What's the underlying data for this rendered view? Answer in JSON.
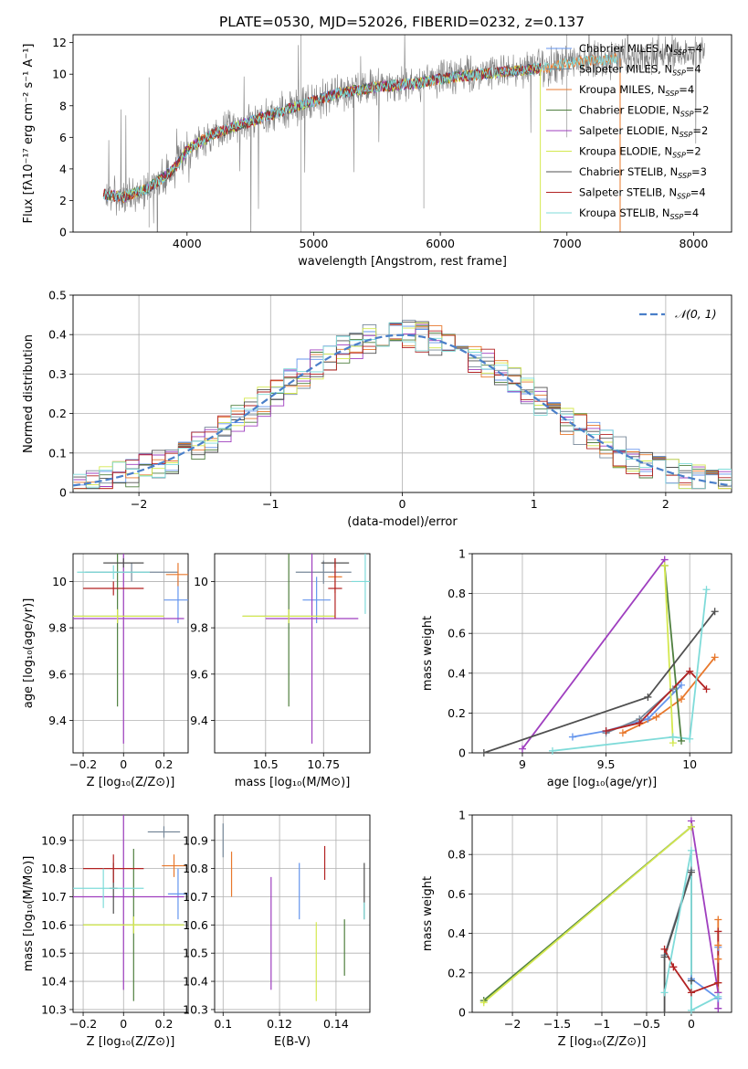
{
  "figure": {
    "title": "PLATE=0530, MJD=52026, FIBERID=0232, z=0.137",
    "series_names": [
      "Chabrier MILES",
      "Salpeter MILES",
      "Kroupa MILES",
      "Chabrier ELODIE",
      "Salpeter ELODIE",
      "Kroupa ELODIE",
      "Chabrier STELIB",
      "Salpeter STELIB",
      "Kroupa STELIB"
    ],
    "nssp": [
      4,
      4,
      4,
      2,
      2,
      2,
      3,
      4,
      4
    ],
    "colors": [
      "#6495ed",
      "#778899",
      "#e8782c",
      "#4f7f3f",
      "#9f3fbf",
      "#d4e84f",
      "#505050",
      "#b22222",
      "#7fdbd9"
    ],
    "legend_nssp_prefix": ", N",
    "legend_nssp_sub": "SSP",
    "legend_nssp_suffix": "=",
    "legend_placement": "top-right"
  },
  "chart_data": [
    {
      "id": "spectrum",
      "type": "line",
      "title": "PLATE=0530, MJD=52026, FIBERID=0232, z=0.137",
      "xlabel": "wavelength [Angstrom, rest frame]",
      "ylabel": "Flux [fλ10⁻¹⁷ erg cm⁻² s⁻¹ A⁻¹]",
      "xlim": [
        3100,
        8300
      ],
      "ylim": [
        0,
        12.5
      ],
      "xticks": [
        4000,
        5000,
        6000,
        7000,
        8000
      ],
      "yticks": [
        0,
        2,
        4,
        6,
        8,
        10,
        12
      ],
      "grid": false,
      "legend": "top-right",
      "data_color": "#808080",
      "data_x_range": [
        3340,
        8090
      ],
      "data_envelope": {
        "x": [
          3340,
          3500,
          3700,
          3900,
          4000,
          4200,
          4500,
          4800,
          5000,
          5200,
          5500,
          5800,
          6000,
          6300,
          6600,
          6900,
          7100,
          7400,
          7700,
          8090
        ],
        "y": [
          2.4,
          2.2,
          2.8,
          4.0,
          5.2,
          6.2,
          7.0,
          7.8,
          8.3,
          8.8,
          9.2,
          9.4,
          9.7,
          10.0,
          10.2,
          10.5,
          10.8,
          11.0,
          11.2,
          11.5
        ]
      },
      "model_gap_x": 6800,
      "model_drop_x": [
        6790,
        7420
      ]
    },
    {
      "id": "residuals",
      "type": "histogram",
      "xlabel": "(data-model)/error",
      "ylabel": "Normed distribution",
      "xlim": [
        -2.5,
        2.5
      ],
      "ylim": [
        0,
        0.5
      ],
      "xticks": [
        -2,
        -1,
        0,
        1,
        2
      ],
      "yticks": [
        0,
        0.1,
        0.2,
        0.3,
        0.4,
        0.5
      ],
      "grid": true,
      "legend": "top-right",
      "reference_label": "𝒩(0, 1)",
      "reference_color": "#4a7fc9",
      "bin_width": 0.1
    },
    {
      "id": "age_vs_Z",
      "type": "errorbar",
      "xlabel": "Z [log₁₀(Z/Z⊙)]",
      "ylabel": "age  [log₁₀(age/yr)]",
      "xlim": [
        -0.25,
        0.32
      ],
      "ylim": [
        9.26,
        10.12
      ],
      "xticks": [
        -0.2,
        0.0,
        0.2
      ],
      "yticks": [
        9.4,
        9.6,
        9.8,
        10.0
      ],
      "grid": true,
      "points": [
        {
          "x": 0.27,
          "y": 9.92,
          "xerr": 0.07,
          "yerr": 0.1
        },
        {
          "x": 0.04,
          "y": 10.04,
          "xerr": 0.23,
          "yerr": 0.04
        },
        {
          "x": 0.27,
          "y": 10.03,
          "xerr": 0.06,
          "yerr": 0.05
        },
        {
          "x": -0.03,
          "y": 9.85,
          "xerr": 0.23,
          "yerr": 0.39
        },
        {
          "x": 0.0,
          "y": 9.84,
          "xerr": 0.3,
          "yerr": 0.54
        },
        {
          "x": -0.03,
          "y": 9.85,
          "xerr": 0.23,
          "yerr": 0.03
        },
        {
          "x": 0.0,
          "y": 10.08,
          "xerr": 0.1,
          "yerr": 0.02
        },
        {
          "x": -0.05,
          "y": 9.97,
          "xerr": 0.15,
          "yerr": 0.03
        },
        {
          "x": -0.05,
          "y": 10.04,
          "xerr": 0.18,
          "yerr": 0.03
        }
      ]
    },
    {
      "id": "age_vs_mass",
      "type": "errorbar",
      "xlabel": "mass [log₁₀(M/M⊙)]",
      "ylabel": "",
      "xlim": [
        10.28,
        10.95
      ],
      "ylim": [
        9.26,
        10.12
      ],
      "xticks": [
        10.5,
        10.75
      ],
      "yticks": [
        9.4,
        9.6,
        9.8,
        10.0
      ],
      "grid": true,
      "points": [
        {
          "x": 10.72,
          "y": 9.92,
          "xerr": 0.06,
          "yerr": 0.1
        },
        {
          "x": 10.75,
          "y": 10.04,
          "xerr": 0.12,
          "yerr": 0.05
        },
        {
          "x": 10.8,
          "y": 10.02,
          "xerr": 0.03,
          "yerr": 0.07
        },
        {
          "x": 10.6,
          "y": 9.85,
          "xerr": 0.2,
          "yerr": 0.39
        },
        {
          "x": 10.7,
          "y": 9.84,
          "xerr": 0.2,
          "yerr": 0.54
        },
        {
          "x": 10.6,
          "y": 9.85,
          "xerr": 0.2,
          "yerr": 0.03
        },
        {
          "x": 10.8,
          "y": 10.08,
          "xerr": 0.06,
          "yerr": 0.02
        },
        {
          "x": 10.8,
          "y": 9.97,
          "xerr": 0.03,
          "yerr": 0.13
        },
        {
          "x": 10.93,
          "y": 10.0,
          "xerr": 0.06,
          "yerr": 0.14
        }
      ]
    },
    {
      "id": "weight_vs_age",
      "type": "line",
      "xlabel": "age  [log₁₀(age/yr)]",
      "ylabel": "mass weight",
      "xlim": [
        8.7,
        10.25
      ],
      "ylim": [
        0,
        1
      ],
      "xticks": [
        9.0,
        9.5,
        10.0
      ],
      "yticks": [
        0.0,
        0.2,
        0.4,
        0.6,
        0.8,
        1.0
      ],
      "grid": true,
      "series": [
        {
          "x": [
            9.3,
            9.5,
            9.75,
            9.95
          ],
          "y": [
            0.08,
            0.11,
            0.17,
            0.34
          ]
        },
        {
          "x": [
            9.5,
            9.7,
            9.9,
            10.0
          ],
          "y": [
            0.1,
            0.17,
            0.32,
            0.41
          ]
        },
        {
          "x": [
            9.6,
            9.8,
            9.95,
            10.15
          ],
          "y": [
            0.1,
            0.18,
            0.27,
            0.48
          ]
        },
        {
          "x": [
            9.85,
            9.95
          ],
          "y": [
            0.94,
            0.06
          ]
        },
        {
          "x": [
            9.0,
            9.85
          ],
          "y": [
            0.02,
            0.97
          ]
        },
        {
          "x": [
            9.85,
            9.9
          ],
          "y": [
            0.94,
            0.05
          ]
        },
        {
          "x": [
            8.77,
            9.75,
            10.15
          ],
          "y": [
            0.0,
            0.28,
            0.71
          ]
        },
        {
          "x": [
            9.5,
            9.7,
            10.0,
            10.1
          ],
          "y": [
            0.11,
            0.15,
            0.41,
            0.32
          ]
        },
        {
          "x": [
            9.18,
            9.9,
            10.0,
            10.1
          ],
          "y": [
            0.01,
            0.08,
            0.07,
            0.82
          ]
        }
      ]
    },
    {
      "id": "mass_vs_Z",
      "type": "errorbar",
      "xlabel": "Z [log₁₀(Z/Z⊙)]",
      "ylabel": "mass [log₁₀(M/M⊙)]",
      "xlim": [
        -0.25,
        0.32
      ],
      "ylim": [
        10.29,
        10.99
      ],
      "xticks": [
        -0.2,
        0.0,
        0.2
      ],
      "yticks": [
        10.3,
        10.4,
        10.5,
        10.6,
        10.7,
        10.8,
        10.9
      ],
      "grid": true,
      "points": [
        {
          "x": 0.27,
          "y": 10.71,
          "xerr": 0.05,
          "yerr": 0.09
        },
        {
          "x": 0.2,
          "y": 10.93,
          "xerr": 0.08,
          "yerr": 0.02
        },
        {
          "x": 0.25,
          "y": 10.81,
          "xerr": 0.06,
          "yerr": 0.04
        },
        {
          "x": 0.05,
          "y": 10.6,
          "xerr": 0.25,
          "yerr": 0.27
        },
        {
          "x": 0.0,
          "y": 10.7,
          "xerr": 0.3,
          "yerr": 0.33
        },
        {
          "x": 0.05,
          "y": 10.6,
          "xerr": 0.25,
          "yerr": 0.03
        },
        {
          "x": -0.05,
          "y": 10.73,
          "xerr": 0.02,
          "yerr": 0.09
        },
        {
          "x": -0.05,
          "y": 10.8,
          "xerr": 0.15,
          "yerr": 0.05
        },
        {
          "x": -0.1,
          "y": 10.73,
          "xerr": 0.2,
          "yerr": 0.07
        }
      ]
    },
    {
      "id": "mass_vs_ebv",
      "type": "errorbar",
      "xlabel": "E(B-V)",
      "ylabel": "",
      "xlim": [
        0.097,
        0.152
      ],
      "ylim": [
        10.29,
        10.99
      ],
      "xticks": [
        0.1,
        0.12,
        0.14
      ],
      "yticks": [
        10.3,
        10.4,
        10.5,
        10.6,
        10.7,
        10.8,
        10.9
      ],
      "grid": true,
      "points": [
        {
          "x": 0.127,
          "y": 10.72,
          "xerr": 0,
          "yerr": 0.1
        },
        {
          "x": 0.1,
          "y": 10.9,
          "xerr": 0,
          "yerr": 0.06
        },
        {
          "x": 0.103,
          "y": 10.78,
          "xerr": 0,
          "yerr": 0.08
        },
        {
          "x": 0.143,
          "y": 10.52,
          "xerr": 0,
          "yerr": 0.1
        },
        {
          "x": 0.117,
          "y": 10.57,
          "xerr": 0,
          "yerr": 0.2
        },
        {
          "x": 0.133,
          "y": 10.47,
          "xerr": 0,
          "yerr": 0.14
        },
        {
          "x": 0.15,
          "y": 10.72,
          "xerr": 0,
          "yerr": 0.1
        },
        {
          "x": 0.136,
          "y": 10.82,
          "xerr": 0,
          "yerr": 0.06
        },
        {
          "x": 0.15,
          "y": 10.65,
          "xerr": 0,
          "yerr": 0.03
        }
      ]
    },
    {
      "id": "weight_vs_Z",
      "type": "line",
      "xlabel": "Z [log₁₀(Z/Z⊙)]",
      "ylabel": "mass weight",
      "xlim": [
        -2.45,
        0.45
      ],
      "ylim": [
        0,
        1
      ],
      "xticks": [
        -2.0,
        -1.5,
        -1.0,
        -0.5,
        0.0
      ],
      "yticks": [
        0.0,
        0.2,
        0.4,
        0.6,
        0.8,
        1.0
      ],
      "grid": true,
      "series": [
        {
          "x": [
            0.0,
            0.3,
            0.3
          ],
          "y": [
            0.17,
            0.07,
            0.33
          ]
        },
        {
          "x": [
            -0.3,
            0.0
          ],
          "y": [
            0.29,
            0.72
          ]
        },
        {
          "x": [
            0.3,
            0.3,
            0.3,
            0.3,
            0.3
          ],
          "y": [
            0.47,
            0.34,
            0.27,
            0.15,
            0.1
          ]
        },
        {
          "x": [
            -2.32,
            0.0
          ],
          "y": [
            0.06,
            0.94
          ]
        },
        {
          "x": [
            0.0,
            0.3,
            0.3
          ],
          "y": [
            0.97,
            0.1,
            0.02
          ]
        },
        {
          "x": [
            -2.32,
            0.0
          ],
          "y": [
            0.05,
            0.94
          ]
        },
        {
          "x": [
            -0.3,
            -0.3,
            0.0,
            0.0
          ],
          "y": [
            0.0,
            0.28,
            0.71,
            0.16
          ]
        },
        {
          "x": [
            -0.3,
            -0.2,
            0.0,
            0.3,
            0.3
          ],
          "y": [
            0.32,
            0.23,
            0.1,
            0.15,
            0.41
          ]
        },
        {
          "x": [
            -0.3,
            0.0,
            0.0,
            0.3
          ],
          "y": [
            0.1,
            0.82,
            0.01,
            0.08
          ]
        }
      ]
    }
  ]
}
